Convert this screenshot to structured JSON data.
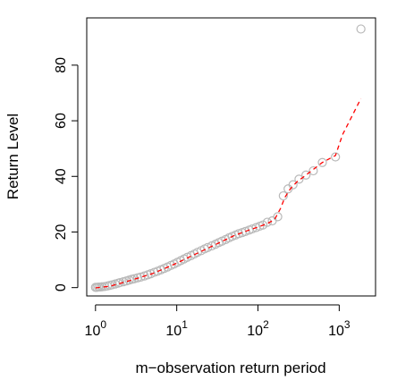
{
  "chart_data": {
    "type": "scatter",
    "title": "",
    "xlabel": "m−observation return period",
    "ylabel": "Return Level",
    "x_scale": "log10",
    "xlim": [
      0.78,
      2800
    ],
    "ylim": [
      -3,
      97
    ],
    "x_ticks": [
      {
        "value": 1,
        "base": "10",
        "exp": "0"
      },
      {
        "value": 10,
        "base": "10",
        "exp": "1"
      },
      {
        "value": 100,
        "base": "10",
        "exp": "2"
      },
      {
        "value": 1000,
        "base": "10",
        "exp": "3"
      }
    ],
    "y_ticks": [
      {
        "value": 0,
        "label": "0"
      },
      {
        "value": 20,
        "label": "20"
      },
      {
        "value": 40,
        "label": "40"
      },
      {
        "value": 60,
        "label": "60"
      },
      {
        "value": 80,
        "label": "80"
      }
    ],
    "grid": false,
    "legend": "none",
    "series": [
      {
        "kind": "points",
        "marker": "open-circle",
        "color": "#b8b8b8",
        "points": [
          {
            "x": 1.0,
            "y": 0.1
          },
          {
            "x": 1.04,
            "y": 0.1
          },
          {
            "x": 1.09,
            "y": 0.2
          },
          {
            "x": 1.14,
            "y": 0.2
          },
          {
            "x": 1.2,
            "y": 0.3
          },
          {
            "x": 1.3,
            "y": 0.4
          },
          {
            "x": 1.4,
            "y": 0.6
          },
          {
            "x": 1.5,
            "y": 0.8
          },
          {
            "x": 1.6,
            "y": 1.0
          },
          {
            "x": 1.75,
            "y": 1.3
          },
          {
            "x": 1.9,
            "y": 1.6
          },
          {
            "x": 2.0,
            "y": 1.8
          },
          {
            "x": 2.2,
            "y": 2.1
          },
          {
            "x": 2.4,
            "y": 2.4
          },
          {
            "x": 2.6,
            "y": 2.7
          },
          {
            "x": 2.8,
            "y": 3.0
          },
          {
            "x": 3.0,
            "y": 3.2
          },
          {
            "x": 3.3,
            "y": 3.5
          },
          {
            "x": 3.6,
            "y": 3.8
          },
          {
            "x": 4.0,
            "y": 4.2
          },
          {
            "x": 4.4,
            "y": 4.6
          },
          {
            "x": 4.8,
            "y": 5.0
          },
          {
            "x": 5.3,
            "y": 5.5
          },
          {
            "x": 5.8,
            "y": 5.9
          },
          {
            "x": 6.4,
            "y": 6.4
          },
          {
            "x": 7.0,
            "y": 6.9
          },
          {
            "x": 7.7,
            "y": 7.4
          },
          {
            "x": 8.5,
            "y": 8.0
          },
          {
            "x": 9.3,
            "y": 8.5
          },
          {
            "x": 10.2,
            "y": 9.1
          },
          {
            "x": 11.2,
            "y": 9.7
          },
          {
            "x": 12.3,
            "y": 10.3
          },
          {
            "x": 13.5,
            "y": 10.9
          },
          {
            "x": 15.0,
            "y": 11.5
          },
          {
            "x": 16.5,
            "y": 12.1
          },
          {
            "x": 18.0,
            "y": 12.7
          },
          {
            "x": 20.0,
            "y": 13.3
          },
          {
            "x": 22.0,
            "y": 13.9
          },
          {
            "x": 24.0,
            "y": 14.4
          },
          {
            "x": 27.0,
            "y": 15.0
          },
          {
            "x": 30.0,
            "y": 15.6
          },
          {
            "x": 33.0,
            "y": 16.2
          },
          {
            "x": 36.0,
            "y": 16.7
          },
          {
            "x": 40.0,
            "y": 17.3
          },
          {
            "x": 44.0,
            "y": 17.9
          },
          {
            "x": 48.0,
            "y": 18.4
          },
          {
            "x": 53.0,
            "y": 18.9
          },
          {
            "x": 58.0,
            "y": 19.4
          },
          {
            "x": 64.0,
            "y": 19.8
          },
          {
            "x": 70.0,
            "y": 20.2
          },
          {
            "x": 78.0,
            "y": 20.7
          },
          {
            "x": 85.0,
            "y": 21.1
          },
          {
            "x": 95.0,
            "y": 21.6
          },
          {
            "x": 105.0,
            "y": 22.1
          },
          {
            "x": 115.0,
            "y": 22.5
          },
          {
            "x": 130.0,
            "y": 23.5
          },
          {
            "x": 150.0,
            "y": 24.0
          },
          {
            "x": 175.0,
            "y": 25.5
          },
          {
            "x": 205.0,
            "y": 33.0
          },
          {
            "x": 235.0,
            "y": 35.5
          },
          {
            "x": 270.0,
            "y": 37.0
          },
          {
            "x": 320.0,
            "y": 39.0
          },
          {
            "x": 390.0,
            "y": 40.5
          },
          {
            "x": 480.0,
            "y": 42.0
          },
          {
            "x": 620.0,
            "y": 45.0
          },
          {
            "x": 900.0,
            "y": 47.0
          },
          {
            "x": 1850.0,
            "y": 93.0
          }
        ]
      },
      {
        "kind": "line",
        "style": "dashed",
        "color": "#ff0000",
        "points": [
          {
            "x": 1.0,
            "y": -0.1
          },
          {
            "x": 1.5,
            "y": 0.5
          },
          {
            "x": 2.0,
            "y": 1.5
          },
          {
            "x": 3.0,
            "y": 3.0
          },
          {
            "x": 5.0,
            "y": 5.0
          },
          {
            "x": 7.0,
            "y": 6.8
          },
          {
            "x": 10.0,
            "y": 8.8
          },
          {
            "x": 15.0,
            "y": 11.3
          },
          {
            "x": 20.0,
            "y": 13.0
          },
          {
            "x": 30.0,
            "y": 15.5
          },
          {
            "x": 50.0,
            "y": 18.6
          },
          {
            "x": 70.0,
            "y": 20.2
          },
          {
            "x": 100.0,
            "y": 21.8
          },
          {
            "x": 130.0,
            "y": 23.0
          },
          {
            "x": 160.0,
            "y": 24.5
          },
          {
            "x": 190.0,
            "y": 28.5
          },
          {
            "x": 215.0,
            "y": 32.5
          },
          {
            "x": 250.0,
            "y": 35.5
          },
          {
            "x": 300.0,
            "y": 38.0
          },
          {
            "x": 380.0,
            "y": 40.2
          },
          {
            "x": 480.0,
            "y": 42.5
          },
          {
            "x": 620.0,
            "y": 45.0
          },
          {
            "x": 900.0,
            "y": 47.5
          },
          {
            "x": 1100.0,
            "y": 55.0
          },
          {
            "x": 1400.0,
            "y": 61.0
          },
          {
            "x": 1850.0,
            "y": 68.0
          }
        ]
      }
    ]
  }
}
